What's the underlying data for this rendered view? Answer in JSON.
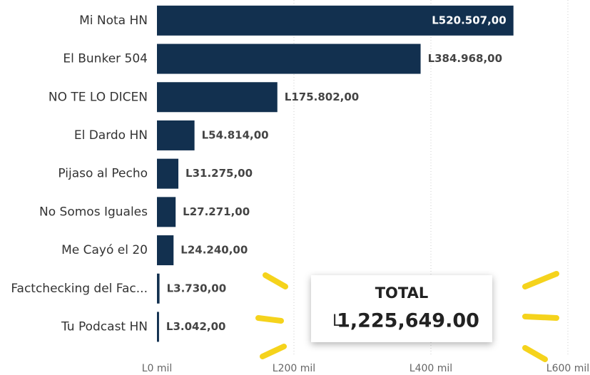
{
  "chart_data": {
    "type": "bar",
    "orientation": "horizontal",
    "categories": [
      "Mi Nota HN",
      "El Bunker 504",
      "NO TE LO DICEN",
      "El Dardo HN",
      "Pijaso al Pecho",
      "No Somos Iguales",
      "Me Cayó el 20",
      "Factchecking del Fac...",
      "Tu Podcast HN"
    ],
    "values": [
      520507,
      384968,
      175802,
      54814,
      31275,
      27271,
      24240,
      3730,
      3042
    ],
    "value_labels": [
      "L520.507,00",
      "L384.968,00",
      "L175.802,00",
      "L54.814,00",
      "L31.275,00",
      "L27.271,00",
      "L24.240,00",
      "L3.730,00",
      "L3.042,00"
    ],
    "color": "#12304f",
    "xlim": [
      0,
      600000
    ],
    "xticks": [
      {
        "value": 0,
        "label": "L0 mil"
      },
      {
        "value": 200000,
        "label": "L200 mil"
      },
      {
        "value": 400000,
        "label": "L400 mil"
      },
      {
        "value": 600000,
        "label": "L600 mil"
      }
    ],
    "grid": true,
    "total": {
      "label": "TOTAL",
      "currency": "L",
      "value": "1,225,649.00"
    }
  }
}
